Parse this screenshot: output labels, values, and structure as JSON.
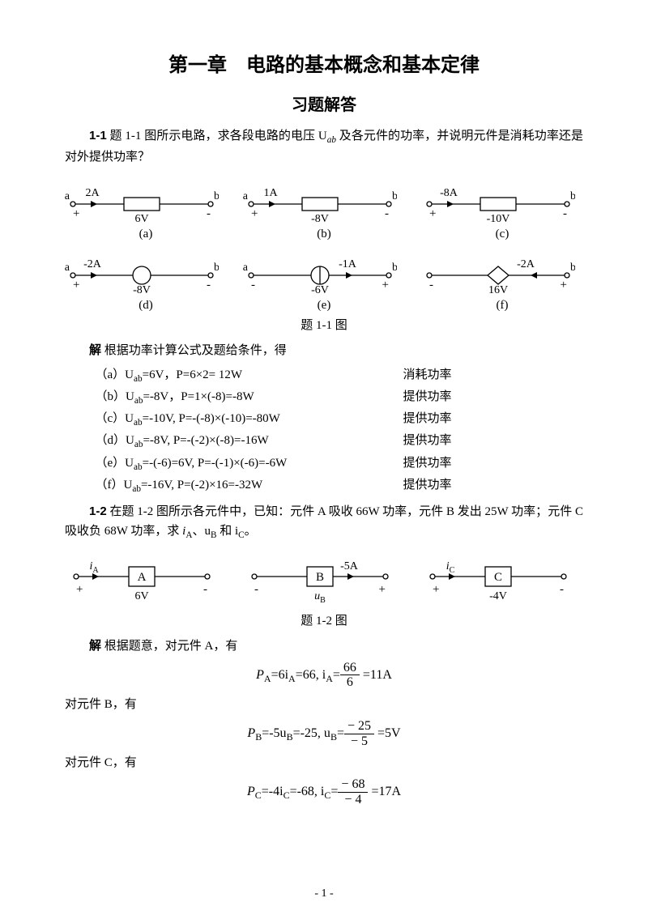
{
  "title": "第一章　电路的基本概念和基本定律",
  "subtitle": "习题解答",
  "p1_1_label": "1-1",
  "p1_1_text": "题 1-1 图所示电路，求各段电路的电压 U",
  "p1_1_text_tail": " 及各元件的功率，并说明元件是消耗功率还是对外提供功率？",
  "uab_sub": "ab",
  "fig1_1_caption": "题 1-1 图",
  "sol_label": "解",
  "sol_lead": " 根据功率计算公式及题给条件，得",
  "sol1": [
    {
      "eq": "（a）U",
      "sub": "ab",
      "rest": "=6V，P=6×2= 12W",
      "type": "消耗功率"
    },
    {
      "eq": "（b）U",
      "sub": "ab",
      "rest": "=-8V，P=1×(-8)=-8W",
      "type": "提供功率"
    },
    {
      "eq": "（c）U",
      "sub": "ab",
      "rest": "=-10V, P=-(-8)×(-10)=-80W",
      "type": "提供功率"
    },
    {
      "eq": "（d）U",
      "sub": "ab",
      "rest": "=-8V, P=-(-2)×(-8)=-16W",
      "type": "提供功率"
    },
    {
      "eq": "（e）U",
      "sub": "ab",
      "rest": "=-(-6)=6V,  P=-(-1)×(-6)=-6W",
      "type": "提供功率"
    },
    {
      "eq": "（f）U",
      "sub": "ab",
      "rest": "=-16V,  P=(-2)×16=-32W",
      "type": "提供功率"
    }
  ],
  "p1_2_label": "1-2",
  "p1_2_text": " 在题 1-2 图所示各元件中，已知：元件 A 吸收 66W 功率，元件 B 发出 25W 功率；元件 C 吸收负 68W 功率，求 ",
  "p1_2_vars": "i",
  "iA_sub": "A",
  "uB_pre": "、u",
  "uB_sub": "B",
  "iC_pre": " 和 i",
  "iC_sub": "C",
  "p1_2_tail": "。",
  "fig1_2_caption": "题 1-2 图",
  "sol2_lead": " 根据题意，对元件 A，有",
  "sol2_B": "对元件 B，有",
  "sol2_C": "对元件 C，有",
  "ckt": [
    {
      "I": "2A",
      "V": "6V",
      "cap": "(a)",
      "a": "a",
      "b": "b",
      "plus": "+",
      "minus": "-",
      "shape": "rect",
      "arrowDir": 1
    },
    {
      "I": "1A",
      "V": "-8V",
      "cap": "(b)",
      "a": "a",
      "b": "b",
      "plus": "+",
      "minus": "-",
      "shape": "rect",
      "arrowDir": 1
    },
    {
      "I": "-8A",
      "V": "-10V",
      "cap": "(c)",
      "a": "",
      "b": "b",
      "plus": "+",
      "minus": "-",
      "shape": "rect",
      "arrowDir": 1
    },
    {
      "I": "-2A",
      "V": "-8V",
      "cap": "(d)",
      "a": "a",
      "b": "b",
      "plus": "+",
      "minus": "-",
      "shape": "vsrc",
      "arrowDir": 1
    },
    {
      "I": "-1A",
      "V": "-6V",
      "cap": "(e)",
      "a": "a",
      "b": "b",
      "plus": "-",
      "minus": "+",
      "shape": "isrc",
      "arrowDir": 1,
      "arrowPos": "right"
    },
    {
      "I": "-2A",
      "V": "16V",
      "cap": "(f)",
      "a": "",
      "b": "b",
      "plus": "-",
      "minus": "+",
      "shape": "diamond",
      "arrowDir": -1,
      "arrowPos": "right"
    }
  ],
  "ckt2": [
    {
      "Ilab": "i",
      "Isub": "A",
      "box": "A",
      "Vlab": "6V",
      "plus": "+",
      "minus": "-",
      "arrowPos": "left"
    },
    {
      "Ilab": "-5A",
      "Isub": "",
      "box": "B",
      "Vlab": "u",
      "Vsub": "B",
      "plus": "-",
      "minus": "+",
      "arrowPos": "right"
    },
    {
      "Ilab": "i",
      "Isub": "C",
      "box": "C",
      "Vlab": "-4V",
      "plus": "+",
      "minus": "-",
      "arrowPos": "left"
    }
  ],
  "eqA_l": "P",
  "eqA_sub": "A",
  "eqA_m": "=6i",
  "eqA_sub2": "A",
  "eqA_r": "=66,   i",
  "eqA_sub3": "A",
  "eqA_e": "=",
  "eqA_num": "66",
  "eqA_den": "6",
  "eqA_val": " =11A",
  "eqB_l": "P",
  "eqB_sub": "B",
  "eqB_m": "=-5u",
  "eqB_sub2": "B",
  "eqB_r": "=-25,   u",
  "eqB_sub3": "B",
  "eqB_e": "=",
  "eqB_num": "− 25",
  "eqB_den": "− 5",
  "eqB_val": " =5V",
  "eqC_l": "P",
  "eqC_sub": "C",
  "eqC_m": "=-4i",
  "eqC_sub2": "C",
  "eqC_r": "=-68,   i",
  "eqC_sub3": "C",
  "eqC_e": "=",
  "eqC_num": "− 68",
  "eqC_den": "− 4",
  "eqC_val": " =17A",
  "pagenum": "- 1 -",
  "colors": {
    "stroke": "#000000",
    "fill": "#ffffff"
  }
}
